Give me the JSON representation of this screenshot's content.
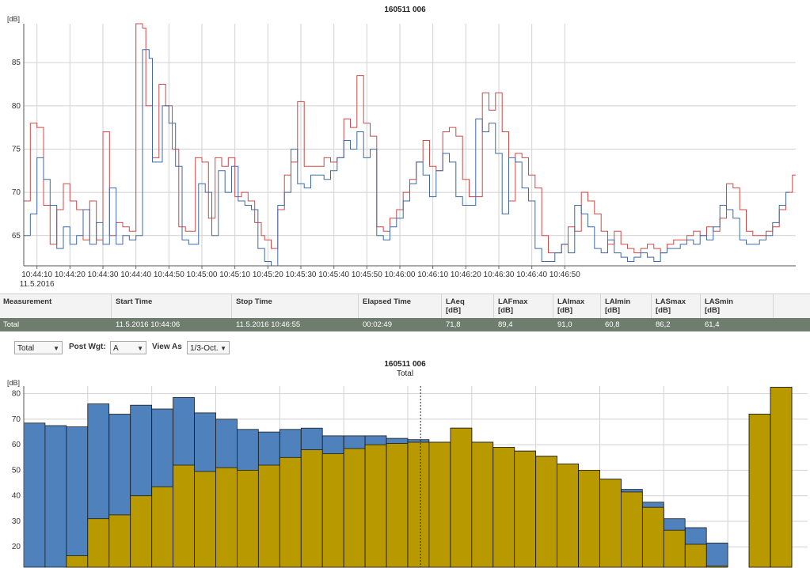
{
  "top_chart": {
    "title": "160511 006",
    "y_unit": "[dB]",
    "y_ticks": [
      "65",
      "70",
      "75",
      "80",
      "85"
    ],
    "x_ticks": [
      "10:44:10",
      "10:44:20",
      "10:44:30",
      "10:44:40",
      "10:44:50",
      "10:45:00",
      "10:45:10",
      "10:45:20",
      "10:45:30",
      "10:45:40",
      "10:45:50",
      "10:46:00",
      "10:46:10",
      "10:46:20",
      "10:46:30",
      "10:46:40",
      "10:46:50"
    ],
    "x_date": "11.5.2016"
  },
  "summary": {
    "headers": {
      "measurement": "Measurement",
      "start": "Start Time",
      "stop": "Stop Time",
      "elapsed": "Elapsed Time",
      "laeq": "LAeq",
      "lafmax": "LAFmax",
      "laimax": "LAImax",
      "laimin": "LAImin",
      "lasmax": "LASmax",
      "lasmin": "LASmin",
      "unit": "[dB]"
    },
    "row": {
      "measurement": "Total",
      "start": "11.5.2016 10:44:06",
      "stop": "11.5.2016 10:46:55",
      "elapsed": "00:02:49",
      "laeq": "71,8",
      "lafmax": "89,4",
      "laimax": "91,0",
      "laimin": "60,8",
      "lasmax": "86,2",
      "lasmin": "61,4"
    }
  },
  "controls": {
    "measurement_select": "Total",
    "post_wgt_label": "Post Wgt:",
    "post_wgt_value": "A",
    "view_as_label": "View As",
    "view_as_value": "1/3-Oct."
  },
  "bottom_chart": {
    "title": "160511 006",
    "subtitle": "Total",
    "y_unit": "[dB]",
    "y_ticks": [
      "20",
      "30",
      "40",
      "50",
      "60",
      "70",
      "80"
    ]
  },
  "colors": {
    "blue": "#4f81bd",
    "gold": "#b89900",
    "red_line": "#d04848",
    "blue_line": "#3f6aa8",
    "table_row_bg": "#6f7d6f"
  },
  "chart_data": [
    {
      "type": "line",
      "title": "160511 006",
      "ylabel": "[dB]",
      "ylim": [
        61.5,
        89.5
      ],
      "x_start": "10:44:06",
      "step_seconds": 1,
      "series": [
        {
          "values": [
            69,
            69,
            78,
            78,
            77.5,
            77.5,
            68.5,
            68.5,
            64,
            64,
            68,
            68,
            71,
            71,
            69,
            69,
            68,
            68,
            64.5,
            64.5,
            69,
            69,
            64.5,
            64.5,
            77,
            77,
            65,
            65,
            66.5,
            66.5,
            66,
            66,
            65.5,
            65.5,
            89.5,
            89.5,
            89,
            80,
            80,
            74,
            74,
            82.5,
            82.5,
            80,
            80,
            75,
            75,
            66,
            66,
            65.5,
            65.5,
            65.5,
            74,
            74,
            73.5,
            73.5,
            67,
            67,
            74,
            74,
            73,
            73,
            74,
            74,
            69.5,
            69.5,
            70,
            70,
            69,
            69,
            66.5,
            66.5,
            65,
            64.5,
            64.5,
            63.5,
            63.5,
            68,
            68,
            72,
            72,
            73.5,
            73.5,
            80.5,
            80.5,
            73,
            73,
            73,
            73,
            73,
            73,
            74,
            74,
            73.5,
            73.5,
            74,
            74,
            78.5,
            78.5,
            77.5,
            77.5,
            83.5,
            83.5,
            78,
            78,
            76.5,
            76.5,
            66,
            66,
            65.5,
            65.5,
            67,
            67,
            68,
            68,
            70,
            70,
            71.5,
            71.5,
            73.5,
            73.5,
            76,
            76,
            73,
            73,
            72.5,
            72.5,
            77,
            77,
            77.5,
            77.5,
            76.5,
            76.5,
            71.5,
            71.5,
            69.5,
            69.5,
            69.5,
            69.5,
            81.5,
            81.5,
            79.5,
            79.5,
            81.5,
            81.5,
            77,
            77,
            69,
            69,
            74.5,
            74.5,
            74,
            74,
            72,
            72,
            70.5,
            70.5,
            65,
            65,
            63,
            63,
            63,
            63,
            64,
            64,
            66,
            66,
            65.5,
            65.5,
            70,
            70,
            69,
            69,
            67.5,
            67.5,
            65.5,
            65.5,
            64,
            64,
            65.5,
            65.5,
            64,
            64,
            63.5,
            63.5,
            63,
            63,
            63.5,
            63.5,
            64,
            64,
            63.5,
            63.5,
            63,
            63,
            64,
            64,
            64.5,
            64.5,
            64.5,
            64.5,
            65,
            65,
            65.5,
            65.5,
            65,
            65,
            66,
            66,
            65.5,
            65.5,
            67,
            67,
            71,
            71,
            70.5,
            70.5,
            68,
            68,
            65.5,
            65.5,
            65,
            65,
            65,
            65,
            65.5,
            65.5,
            66,
            66,
            68,
            68,
            70,
            70,
            72
          ]
        },
        {
          "values": [
            65,
            65,
            67.5,
            67.5,
            74,
            74,
            71.5,
            71.5,
            68.5,
            68.5,
            63.5,
            63.5,
            66,
            66,
            64,
            64,
            65,
            65,
            68,
            68,
            64,
            64,
            66.5,
            66.5,
            64,
            64,
            70.5,
            70.5,
            64,
            64,
            65,
            65,
            64.5,
            64.5,
            65,
            65,
            86.5,
            86.5,
            85.5,
            73.5,
            73.5,
            73.5,
            80,
            80,
            78,
            78,
            73,
            73,
            64.5,
            64.5,
            64,
            64,
            64,
            71,
            71,
            70,
            70,
            65,
            65,
            72.5,
            72.5,
            70,
            70,
            73,
            73,
            69,
            69,
            68.5,
            68.5,
            68,
            68,
            63.5,
            63.5,
            62,
            62,
            61.5,
            61.5,
            68.5,
            68.5,
            70,
            70,
            75,
            75,
            71,
            71,
            70.5,
            70.5,
            72,
            72,
            72,
            72,
            71.5,
            71.5,
            72.5,
            72.5,
            74,
            74,
            76,
            76,
            75,
            75,
            77,
            77,
            74,
            74,
            75,
            75,
            65,
            65,
            64.5,
            64.5,
            66,
            66,
            67,
            67,
            69,
            69,
            71,
            71,
            73.5,
            73.5,
            72,
            72,
            69.5,
            69.5,
            72.5,
            72.5,
            74.5,
            74.5,
            73.5,
            73.5,
            69.5,
            69.5,
            68.5,
            68.5,
            68.5,
            68.5,
            78.5,
            78.5,
            77,
            77,
            78,
            78,
            74.5,
            74.5,
            67.5,
            67.5,
            74,
            74,
            73.5,
            73.5,
            70.5,
            70.5,
            69,
            69,
            63.5,
            63.5,
            62,
            62,
            62,
            62,
            63,
            63,
            64,
            64,
            63,
            63,
            68.5,
            68.5,
            67.5,
            67.5,
            66,
            66,
            63.5,
            63.5,
            63,
            63,
            64.5,
            64.5,
            63,
            63,
            62.5,
            62.5,
            62,
            62,
            62.5,
            62.5,
            63,
            63,
            62.5,
            62.5,
            62,
            62,
            63,
            63,
            63.5,
            63.5,
            63.5,
            63.5,
            64,
            64,
            64.5,
            64.5,
            64,
            64,
            65,
            65,
            64.5,
            64.5,
            66,
            66,
            68.5,
            68.5,
            68,
            68,
            67,
            67,
            64.5,
            64.5,
            64,
            64,
            64,
            64,
            64.5,
            64.5,
            65,
            65,
            66.5,
            66.5,
            68.5,
            68.5,
            70
          ]
        }
      ]
    },
    {
      "type": "bar",
      "title": "160511 006",
      "subtitle": "Total",
      "ylabel": "[dB]",
      "ylim": [
        12,
        83
      ],
      "series": [
        {
          "values": [
            68.5,
            67.5,
            67,
            76,
            72,
            75.5,
            74,
            78.5,
            72.5,
            70,
            66,
            65,
            66,
            66.5,
            63.5,
            63.5,
            63.5,
            62.5,
            62,
            61,
            66.5,
            61,
            59,
            57.5,
            55.5,
            52.5,
            50,
            46.5,
            42.5,
            37.5,
            31,
            27.5,
            21.5,
            null,
            72,
            82.5
          ]
        },
        {
          "values": [
            null,
            11,
            16.5,
            31,
            32.5,
            40,
            43.5,
            52,
            49.5,
            51,
            50,
            52,
            55,
            58,
            56.5,
            58.5,
            60,
            60.5,
            61,
            61,
            66.5,
            61,
            59,
            57.5,
            55.5,
            52.5,
            50,
            46.5,
            41.5,
            35.5,
            26.5,
            21,
            12.5,
            null,
            72,
            82.5
          ]
        }
      ]
    }
  ]
}
